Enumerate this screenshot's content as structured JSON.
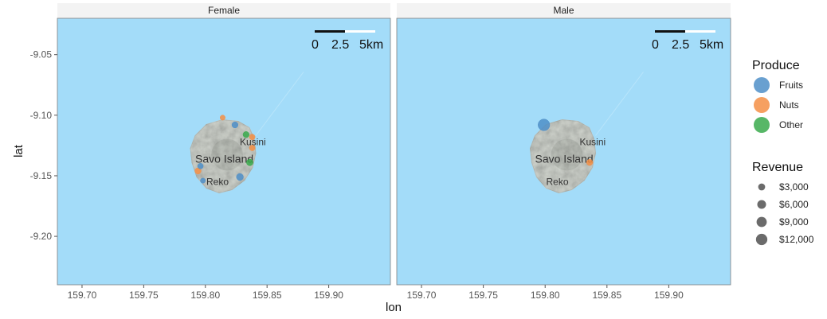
{
  "chart_data": {
    "type": "scatter",
    "subtype": "faceted map with proportional symbols",
    "x_axis": {
      "title": "lon",
      "lim": [
        159.68,
        159.95
      ],
      "ticks": [
        "159.70",
        "159.75",
        "159.80",
        "159.85",
        "159.90"
      ]
    },
    "y_axis": {
      "title": "lat",
      "lim": [
        -9.24,
        -9.02
      ],
      "ticks": [
        "-9.05",
        "-9.10",
        "-9.15",
        "-9.20"
      ]
    },
    "background": "water",
    "grid": false,
    "legend_position": "right",
    "colors": {
      "water": "#a3dcf9",
      "Fruits": "#4f8fc8",
      "Nuts": "#f58f45",
      "Other": "#3aaa4c",
      "size_symbol": "#6b6b6b"
    },
    "scale_bar": {
      "labels": [
        "0",
        "2.5",
        "5km"
      ]
    },
    "place_labels": [
      "Kusini",
      "Savo Island",
      "Reko"
    ],
    "facets": [
      {
        "title": "Female",
        "points": [
          {
            "lon": 159.824,
            "lat": -9.108,
            "produce": "Fruits",
            "revenue": 2000
          },
          {
            "lon": 159.814,
            "lat": -9.102,
            "produce": "Nuts",
            "revenue": 1000
          },
          {
            "lon": 159.833,
            "lat": -9.116,
            "produce": "Other",
            "revenue": 2000
          },
          {
            "lon": 159.838,
            "lat": -9.118,
            "produce": "Nuts",
            "revenue": 1500
          },
          {
            "lon": 159.838,
            "lat": -9.127,
            "produce": "Nuts",
            "revenue": 1500
          },
          {
            "lon": 159.836,
            "lat": -9.139,
            "produce": "Other",
            "revenue": 2500
          },
          {
            "lon": 159.828,
            "lat": -9.151,
            "produce": "Fruits",
            "revenue": 3000
          },
          {
            "lon": 159.794,
            "lat": -9.146,
            "produce": "Nuts",
            "revenue": 2000
          },
          {
            "lon": 159.796,
            "lat": -9.142,
            "produce": "Fruits",
            "revenue": 1500
          },
          {
            "lon": 159.798,
            "lat": -9.154,
            "produce": "Fruits",
            "revenue": 1000
          }
        ]
      },
      {
        "title": "Male",
        "points": [
          {
            "lon": 159.799,
            "lat": -9.108,
            "produce": "Fruits",
            "revenue": 13000
          },
          {
            "lon": 159.836,
            "lat": -9.139,
            "produce": "Nuts",
            "revenue": 2000
          }
        ]
      }
    ],
    "legend": {
      "color_title": "Produce",
      "color_entries": [
        "Fruits",
        "Nuts",
        "Other"
      ],
      "size_title": "Revenue",
      "size_entries": [
        "$3,000",
        "$6,000",
        "$9,000",
        "$12,000"
      ],
      "size_values": [
        3000,
        6000,
        9000,
        12000
      ]
    }
  }
}
